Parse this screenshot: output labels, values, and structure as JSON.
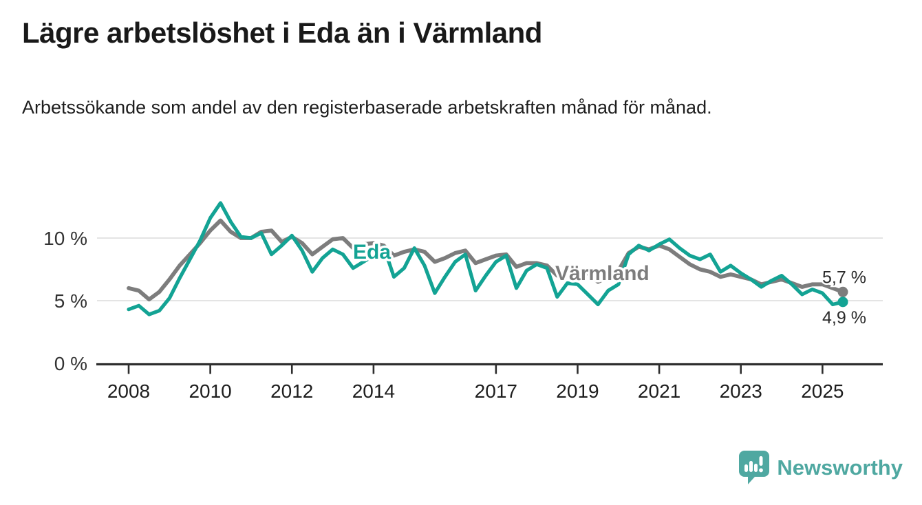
{
  "header": {
    "title": "Lägre arbetslöshet i Eda än i Värmland",
    "subtitle": "Arbetssökande som andel av den registerbaserade arbetskraften månad för månad."
  },
  "chart_data": {
    "type": "line",
    "title": "Lägre arbetslöshet i Eda än i Värmland",
    "subtitle": "Arbetssökande som andel av den registerbaserade arbetskraften månad för månad.",
    "x_unit": "decimal_year_monthly_share_of_labour_force",
    "xlim": [
      2008.0,
      2025.5
    ],
    "ylim": [
      0,
      13.5
    ],
    "grid": "horizontal",
    "legend": "inline-series-labels",
    "x_ticks": [
      2008,
      2010,
      2012,
      2014,
      2017,
      2019,
      2021,
      2023,
      2025
    ],
    "y_ticks": [
      {
        "value": 0,
        "label": "0 %"
      },
      {
        "value": 5,
        "label": "5 %"
      },
      {
        "value": 10,
        "label": "10 %"
      }
    ],
    "x": [
      2008.0,
      2008.25,
      2008.5,
      2008.75,
      2009.0,
      2009.25,
      2009.5,
      2009.75,
      2010.0,
      2010.25,
      2010.5,
      2010.75,
      2011.0,
      2011.25,
      2011.5,
      2011.75,
      2012.0,
      2012.25,
      2012.5,
      2012.75,
      2013.0,
      2013.25,
      2013.5,
      2013.75,
      2014.0,
      2014.25,
      2014.5,
      2014.75,
      2015.0,
      2015.25,
      2015.5,
      2015.75,
      2016.0,
      2016.25,
      2016.5,
      2016.75,
      2017.0,
      2017.25,
      2017.5,
      2017.75,
      2018.0,
      2018.25,
      2018.5,
      2018.75,
      2019.0,
      2019.25,
      2019.5,
      2019.75,
      2020.0,
      2020.25,
      2020.5,
      2020.75,
      2021.0,
      2021.25,
      2021.5,
      2021.75,
      2022.0,
      2022.25,
      2022.5,
      2022.75,
      2023.0,
      2023.25,
      2023.5,
      2023.75,
      2024.0,
      2024.25,
      2024.5,
      2024.75,
      2025.0,
      2025.25,
      2025.5
    ],
    "series": [
      {
        "name": "Värmland",
        "color": "#7d7d7d",
        "end_label": "5,7 %",
        "end_value": 5.7,
        "values": [
          6.0,
          5.8,
          5.1,
          5.7,
          6.7,
          7.8,
          8.7,
          9.6,
          10.6,
          11.4,
          10.5,
          10.0,
          10.0,
          10.5,
          10.6,
          9.7,
          10.1,
          9.6,
          8.7,
          9.3,
          9.9,
          10.0,
          9.2,
          9.5,
          9.6,
          9.4,
          8.6,
          8.9,
          9.1,
          8.9,
          8.1,
          8.4,
          8.8,
          9.0,
          8.0,
          8.3,
          8.6,
          8.7,
          7.7,
          8.0,
          8.0,
          7.8,
          7.0,
          7.3,
          7.4,
          7.2,
          6.5,
          6.9,
          7.4,
          8.8,
          9.3,
          9.1,
          9.4,
          9.1,
          8.5,
          7.9,
          7.5,
          7.3,
          6.9,
          7.1,
          6.9,
          6.7,
          6.3,
          6.5,
          6.7,
          6.4,
          6.1,
          6.3,
          6.3,
          6.0,
          5.7
        ]
      },
      {
        "name": "Eda",
        "color": "#13a394",
        "end_label": "4,9 %",
        "end_value": 4.9,
        "values": [
          4.3,
          4.6,
          3.9,
          4.2,
          5.2,
          6.8,
          8.3,
          9.8,
          11.6,
          12.8,
          11.3,
          10.1,
          10.0,
          10.4,
          8.7,
          9.4,
          10.2,
          9.0,
          7.3,
          8.4,
          9.1,
          8.7,
          7.6,
          8.1,
          8.6,
          9.3,
          6.9,
          7.6,
          9.2,
          7.8,
          5.6,
          6.9,
          8.1,
          8.7,
          5.8,
          7.0,
          8.1,
          8.6,
          6.0,
          7.4,
          7.9,
          7.6,
          5.3,
          6.4,
          6.3,
          5.5,
          4.7,
          5.8,
          6.3,
          8.7,
          9.4,
          9.0,
          9.5,
          9.9,
          9.2,
          8.6,
          8.3,
          8.7,
          7.3,
          7.8,
          7.2,
          6.7,
          6.1,
          6.6,
          7.0,
          6.3,
          5.5,
          5.9,
          5.6,
          4.7,
          4.9
        ]
      }
    ]
  },
  "branding": {
    "name": "Newsworthy",
    "color": "#4fa8a1"
  },
  "colors": {
    "background": "#ffffff",
    "title": "#191919",
    "text": "#1e1e1e",
    "axis": "#2e2e2e",
    "tick_label": "#333333",
    "gridline": "#dcdcdc",
    "value_label": "#2b2b2b"
  }
}
